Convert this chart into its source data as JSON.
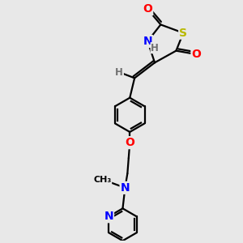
{
  "bg_color": "#e8e8e8",
  "bond_color": "#000000",
  "bond_width": 1.6,
  "atom_colors": {
    "S": "#b8b800",
    "O": "#ff0000",
    "N": "#0000ff",
    "H": "#707070",
    "C": "#000000"
  },
  "font_size_atom": 10,
  "font_size_h": 8.5,
  "font_size_me": 8,
  "xlim": [
    0,
    10
  ],
  "ylim": [
    0,
    10
  ]
}
